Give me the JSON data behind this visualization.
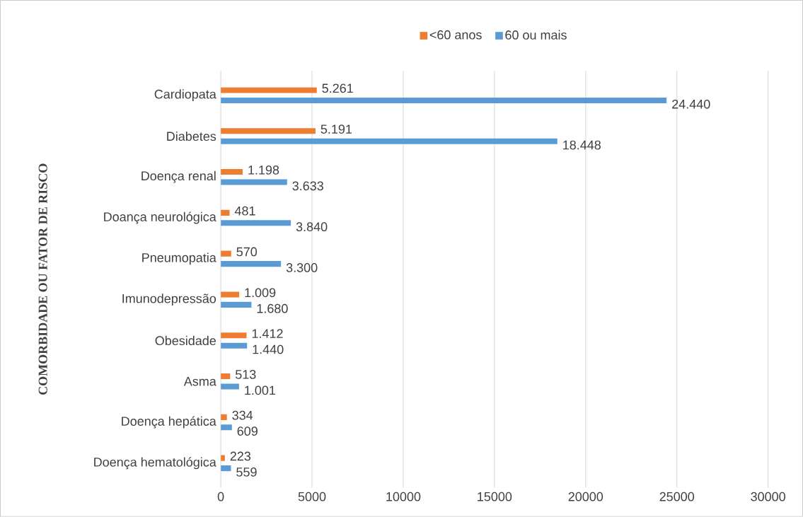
{
  "chart_data": {
    "type": "bar",
    "orientation": "horizontal",
    "ylabel": "COMORBIDADE OU FATOR DE RISCO",
    "categories": [
      "Cardiopata",
      "Diabetes",
      "Doença renal",
      "Doança neurológica",
      "Pneumopatia",
      "Imunodepressão",
      "Obesidade",
      "Asma",
      "Doença hepática",
      "Doença hematológica"
    ],
    "series": [
      {
        "name": "<60 anos",
        "color": "#ed7d31",
        "values": [
          5261,
          5191,
          1198,
          481,
          570,
          1009,
          1412,
          513,
          334,
          223
        ],
        "value_labels": [
          "5.261",
          "5.191",
          "1.198",
          "481",
          "570",
          "1.009",
          "1.412",
          "513",
          "334",
          "223"
        ]
      },
      {
        "name": "60 ou mais",
        "color": "#5b9bd5",
        "values": [
          24440,
          18448,
          3633,
          3840,
          3300,
          1680,
          1440,
          1001,
          609,
          559
        ],
        "value_labels": [
          "24.440",
          "18.448",
          "3.633",
          "3.840",
          "3.300",
          "1.680",
          "1.440",
          "1.001",
          "609",
          "559"
        ]
      }
    ],
    "xlim": [
      0,
      30000
    ],
    "xticks": [
      0,
      5000,
      10000,
      15000,
      20000,
      25000,
      30000
    ],
    "grid": "x",
    "legend": "top"
  }
}
